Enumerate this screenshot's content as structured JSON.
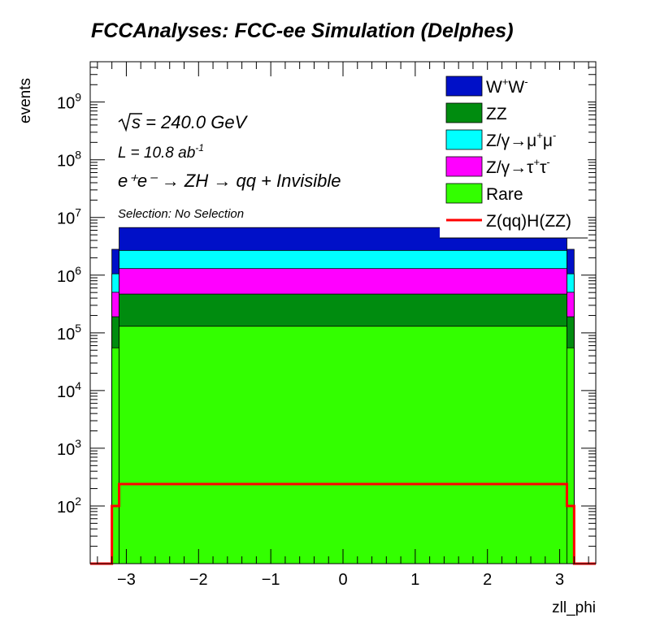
{
  "title": "FCCAnalyses: FCC-ee Simulation (Delphes)",
  "annotations": {
    "energy_label": "√s = 240.0 GeV",
    "lumi_label": "L = 10.8 ab",
    "lumi_exp": "-1",
    "process": "e⁺e⁻ → ZH → qq + Invisible",
    "selection": "Selection: No Selection"
  },
  "colors": {
    "WW": "#0010c8",
    "ZZ": "#008c0f",
    "Zmumu": "#00ffff",
    "Ztautau": "#ff00ff",
    "Rare": "#33ff00",
    "signal": "#ff0000"
  },
  "chart_data": {
    "type": "histogram",
    "title": "FCCAnalyses: FCC-ee Simulation (Delphes)",
    "xlabel": "zll_phi",
    "ylabel": "events",
    "xlim": [
      -3.5,
      3.5
    ],
    "ylim": [
      10,
      5000000000
    ],
    "yscale": "log",
    "grid": false,
    "legend_position": "top-right",
    "x_ticks": [
      "−3",
      "−2",
      "−1",
      "0",
      "1",
      "2",
      "3"
    ],
    "y_ticks": [
      {
        "base": "10",
        "exp": "2",
        "value": 100
      },
      {
        "base": "10",
        "exp": "3",
        "value": 1000
      },
      {
        "base": "10",
        "exp": "4",
        "value": 10000
      },
      {
        "base": "10",
        "exp": "5",
        "value": 100000
      },
      {
        "base": "10",
        "exp": "6",
        "value": 1000000
      },
      {
        "base": "10",
        "exp": "7",
        "value": 10000000
      },
      {
        "base": "10",
        "exp": "8",
        "value": 100000000
      },
      {
        "base": "10",
        "exp": "9",
        "value": 1000000000
      }
    ],
    "bins": [
      {
        "lo": -3.5,
        "hi": -3.2,
        "Rare": 0,
        "ZZ": 0,
        "Ztautau": 0,
        "Zmumu": 0,
        "WW": 0,
        "signal": 0
      },
      {
        "lo": -3.2,
        "hi": -3.1,
        "Rare": 55000,
        "ZZ": 135000,
        "Ztautau": 315000,
        "Zmumu": 550000,
        "WW": 1750000,
        "signal": 100
      },
      {
        "lo": -3.1,
        "hi": 3.1,
        "Rare": 130000,
        "ZZ": 340000,
        "Ztautau": 830000,
        "Zmumu": 1380000,
        "WW": 4000000,
        "signal": 240
      },
      {
        "lo": 3.1,
        "hi": 3.2,
        "Rare": 55000,
        "ZZ": 135000,
        "Ztautau": 315000,
        "Zmumu": 550000,
        "WW": 1750000,
        "signal": 100
      },
      {
        "lo": 3.2,
        "hi": 3.5,
        "Rare": 0,
        "ZZ": 0,
        "Ztautau": 0,
        "Zmumu": 0,
        "WW": 0,
        "signal": 0
      }
    ],
    "series": [
      {
        "key": "WW",
        "name": "W",
        "sup1": "+",
        "mid": "W",
        "sup2": "-",
        "style": "fill"
      },
      {
        "key": "ZZ",
        "name": "ZZ",
        "style": "fill"
      },
      {
        "key": "Zmumu",
        "name": "Z/γ→μ",
        "sup1": "+",
        "mid": "μ",
        "sup2": "-",
        "style": "fill"
      },
      {
        "key": "Ztautau",
        "name": "Z/γ→τ",
        "sup1": "+",
        "mid": "τ",
        "sup2": "-",
        "style": "fill"
      },
      {
        "key": "Rare",
        "name": "Rare",
        "style": "fill"
      },
      {
        "key": "signal",
        "name": "Z(qq)H(ZZ)",
        "style": "line"
      }
    ],
    "stack_order": [
      "Rare",
      "ZZ",
      "Ztautau",
      "Zmumu",
      "WW"
    ]
  }
}
